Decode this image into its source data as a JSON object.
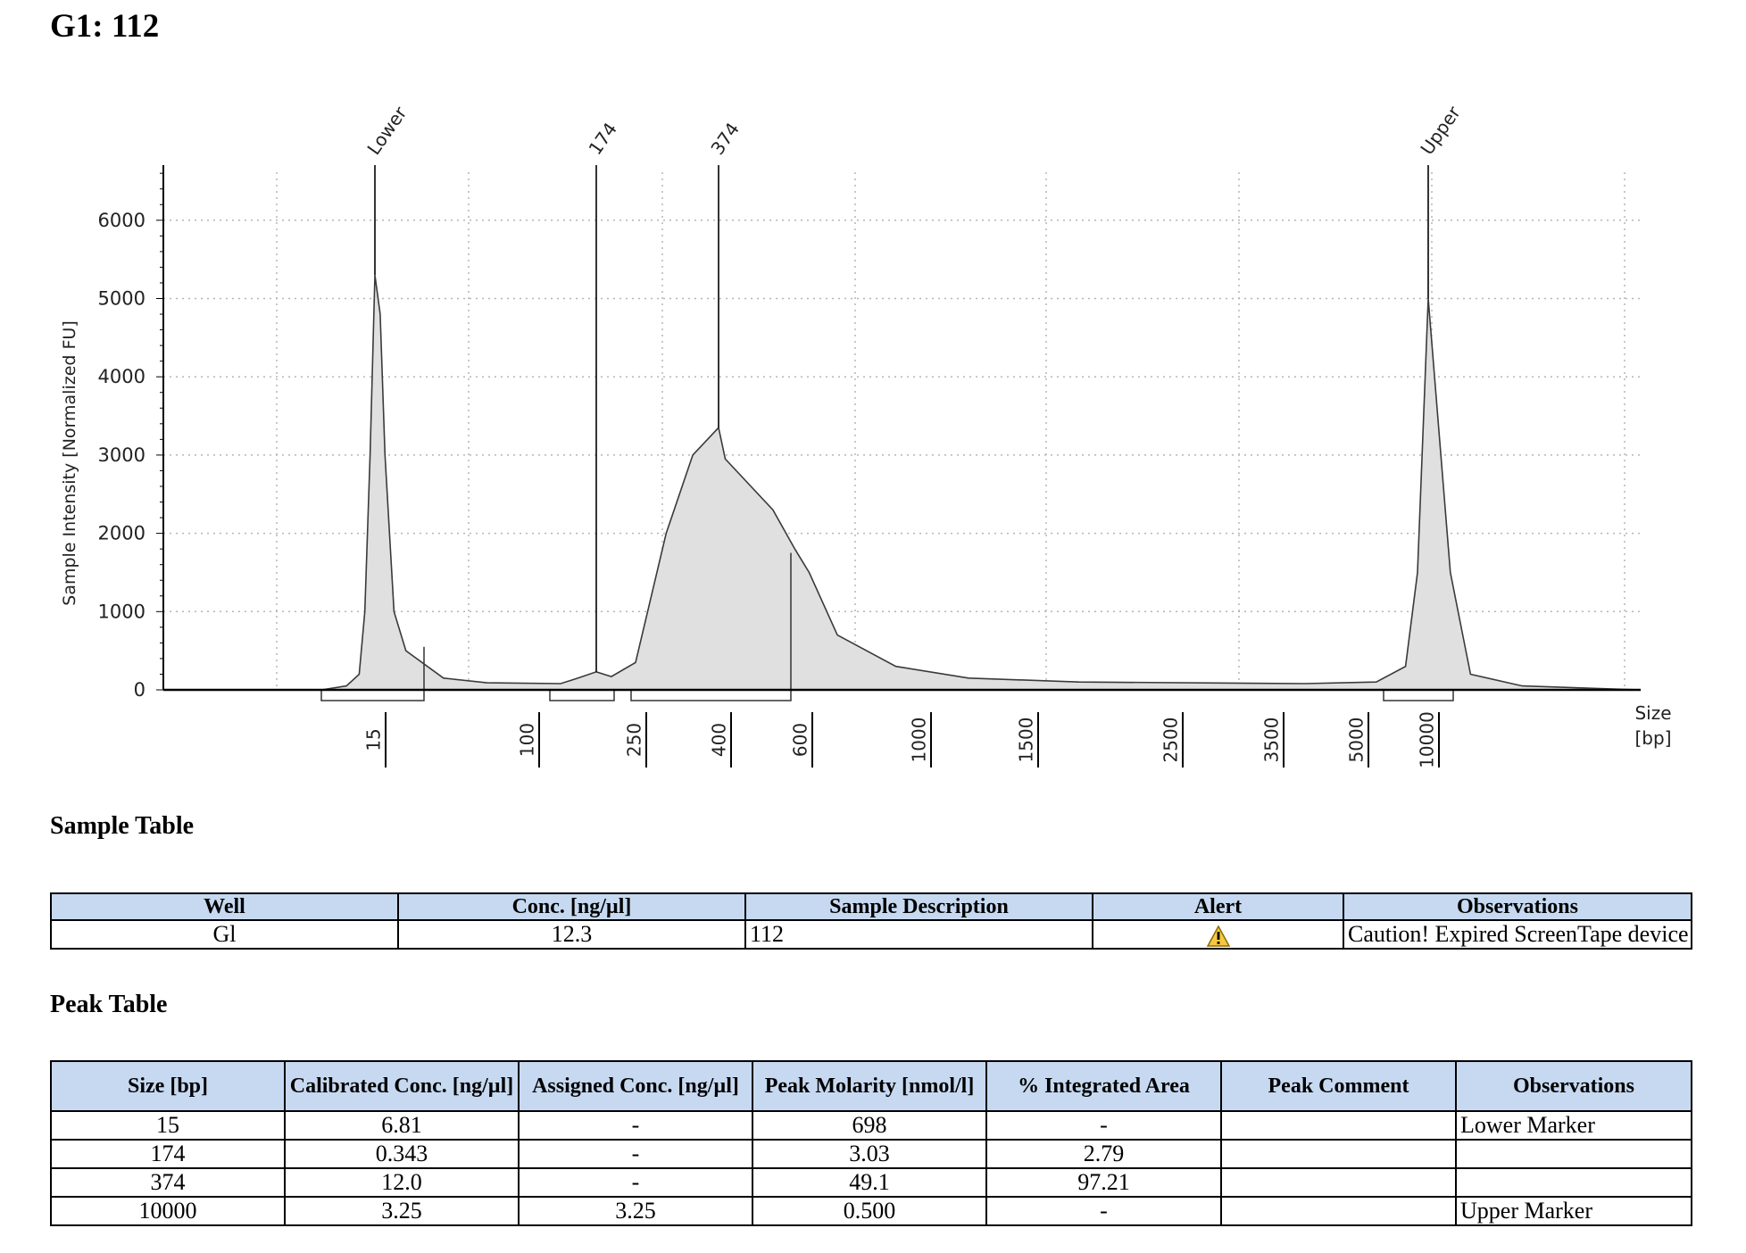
{
  "title": "G1: 112",
  "chart_data": {
    "type": "area",
    "xlabel": "Size [bp]",
    "ylabel": "Sample Intensity [Normalized FU]",
    "ylim": [
      0,
      6500
    ],
    "yticks": [
      0,
      1000,
      2000,
      3000,
      4000,
      5000,
      6000
    ],
    "xticks": [
      "15",
      "100",
      "250",
      "400",
      "600",
      "1000",
      "1500",
      "2500",
      "3500",
      "5000",
      "10000"
    ],
    "x_axis_scale": "nonlinear (electrophoresis size calibration)",
    "grid": true,
    "peaks": [
      {
        "label": "Lower",
        "size_bp": 15,
        "height": 5300
      },
      {
        "label": "174",
        "size_bp": 174,
        "height": 230
      },
      {
        "label": "374",
        "size_bp": 374,
        "height": 3350
      },
      {
        "label": "Upper",
        "size_bp": 10000,
        "height": 5000
      }
    ],
    "series": [
      {
        "values": [
          {
            "x": 7,
            "y": 0
          },
          {
            "x": 10,
            "y": 50
          },
          {
            "x": 12,
            "y": 200
          },
          {
            "x": 13,
            "y": 1000
          },
          {
            "x": 14,
            "y": 3000
          },
          {
            "x": 15,
            "y": 5300
          },
          {
            "x": 16,
            "y": 4800
          },
          {
            "x": 17,
            "y": 3000
          },
          {
            "x": 19,
            "y": 1000
          },
          {
            "x": 22,
            "y": 500
          },
          {
            "x": 35,
            "y": 150
          },
          {
            "x": 60,
            "y": 90
          },
          {
            "x": 130,
            "y": 80
          },
          {
            "x": 150,
            "y": 150
          },
          {
            "x": 174,
            "y": 230
          },
          {
            "x": 200,
            "y": 170
          },
          {
            "x": 250,
            "y": 350
          },
          {
            "x": 290,
            "y": 2000
          },
          {
            "x": 330,
            "y": 3000
          },
          {
            "x": 374,
            "y": 3350
          },
          {
            "x": 410,
            "y": 2950
          },
          {
            "x": 520,
            "y": 2300
          },
          {
            "x": 580,
            "y": 1800
          },
          {
            "x": 620,
            "y": 1500
          },
          {
            "x": 700,
            "y": 700
          },
          {
            "x": 900,
            "y": 300
          },
          {
            "x": 1200,
            "y": 150
          },
          {
            "x": 1800,
            "y": 100
          },
          {
            "x": 4000,
            "y": 80
          },
          {
            "x": 6000,
            "y": 100
          },
          {
            "x": 8000,
            "y": 300
          },
          {
            "x": 9000,
            "y": 1500
          },
          {
            "x": 10000,
            "y": 5000
          },
          {
            "x": 11000,
            "y": 1500
          },
          {
            "x": 12000,
            "y": 200
          },
          {
            "x": 15000,
            "y": 50
          },
          {
            "x": 25000,
            "y": 0
          }
        ]
      }
    ]
  },
  "sample_section_title": "Sample Table",
  "sample_table": {
    "headers": [
      "Well",
      "Conc. [ng/µl]",
      "Sample Description",
      "Alert",
      "Observations"
    ],
    "rows": [
      [
        "Gl",
        "12.3",
        "112",
        "warning-icon",
        "Caution! Expired ScreenTape device"
      ]
    ]
  },
  "peak_section_title": "Peak Table",
  "peak_table": {
    "headers": [
      "Size [bp]",
      "Calibrated Conc. [ng/µl]",
      "Assigned Conc. [ng/µl]",
      "Peak Molarity [nmol/l]",
      "% Integrated Area",
      "Peak Comment",
      "Observations"
    ],
    "rows": [
      [
        "15",
        "6.81",
        "-",
        "698",
        "-",
        "",
        "Lower Marker"
      ],
      [
        "174",
        "0.343",
        "-",
        "3.03",
        "2.79",
        "",
        ""
      ],
      [
        "374",
        "12.0",
        "-",
        "49.1",
        "97.21",
        "",
        ""
      ],
      [
        "10000",
        "3.25",
        "3.25",
        "0.500",
        "-",
        "",
        "Upper Marker"
      ]
    ]
  },
  "colors": {
    "fill": "#e0e0e0",
    "header_bg": "#c6d9f1",
    "alert": "#f5c842"
  }
}
